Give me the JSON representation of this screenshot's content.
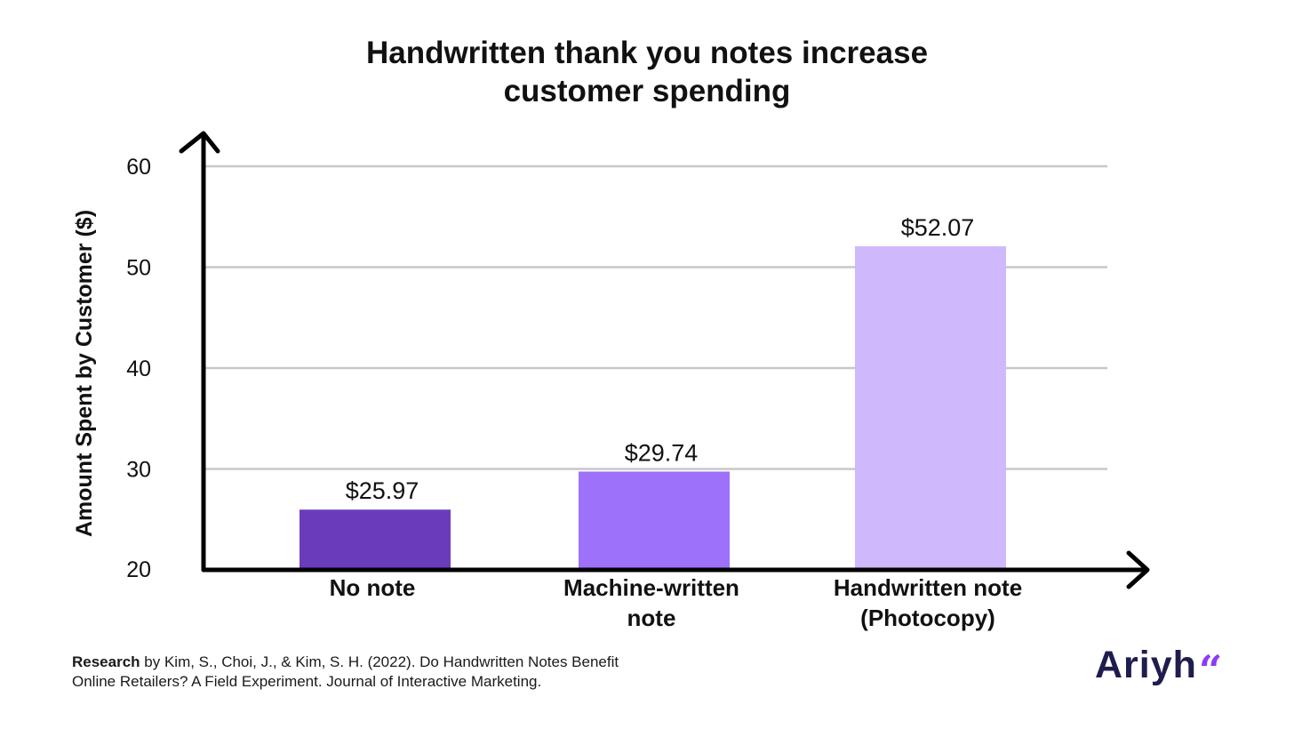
{
  "colors": {
    "axis": "#000000",
    "grid": "#c8c8c8",
    "text": "#111111",
    "brand_word": "#1f1d4d",
    "brand_mark": "#8b3cf7"
  },
  "chart_data": {
    "type": "bar",
    "title_lines": [
      "Handwritten thank you notes increase",
      "customer spending"
    ],
    "ylabel": "Amount Spent by Customer ($)",
    "xlabel": "",
    "ylim": [
      20,
      60
    ],
    "yticks": [
      "20",
      "30",
      "40",
      "50",
      "60"
    ],
    "grid": true,
    "legend": "none",
    "categories": [
      [
        "No note"
      ],
      [
        "Machine-written",
        "note"
      ],
      [
        "Handwritten note",
        "(Photocopy)"
      ]
    ],
    "values": [
      25.97,
      29.74,
      52.07
    ],
    "data_labels": [
      "$25.97",
      "$29.74",
      "$52.07"
    ],
    "bar_colors": [
      "#6a3cbc",
      "#9e71fa",
      "#cfb9fc"
    ]
  },
  "source": {
    "lead": "Research",
    "line1_rest": " by Kim, S., Choi, J., & Kim, S. H. (2022). Do Handwritten Notes Benefit",
    "line2": "Online Retailers? A Field Experiment. Journal of Interactive Marketing."
  },
  "brand": {
    "word": "Ariyh",
    "mark": "“"
  }
}
